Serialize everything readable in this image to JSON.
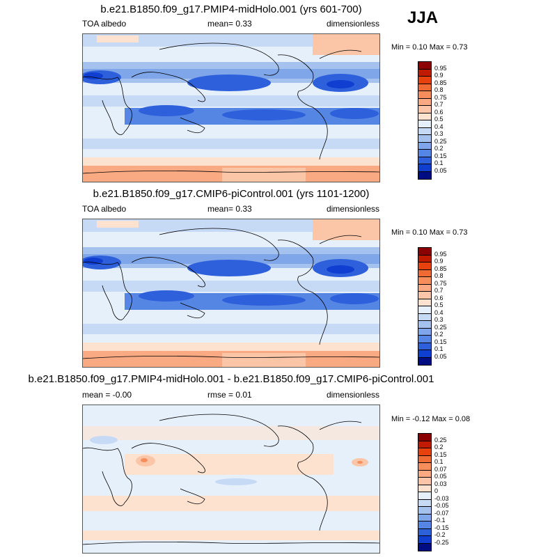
{
  "season": "JJA",
  "panels": [
    {
      "title": "b.e21.B1850.f09_g17.PMIP4-midHolo.001 (yrs 601-700)",
      "left_label": "TOA albedo",
      "center_label": "mean=   0.33",
      "right_label": "dimensionless",
      "minmax": "Min =   0.10 Max =   0.73",
      "kind": "abs"
    },
    {
      "title": "b.e21.B1850.f09_g17.CMIP6-piControl.001 (yrs 1101-1200)",
      "left_label": "TOA albedo",
      "center_label": "mean=   0.33",
      "right_label": "dimensionless",
      "minmax": "Min =   0.10 Max =   0.73",
      "kind": "abs"
    },
    {
      "title": "b.e21.B1850.f09_g17.PMIP4-midHolo.001 - b.e21.B1850.f09_g17.CMIP6-piControl.001",
      "left_label": "mean =  -0.00",
      "center_label": "rmse =   0.01",
      "right_label": "dimensionless",
      "minmax": "Min =  -0.12 Max =   0.08",
      "kind": "diff"
    }
  ],
  "colorbars": {
    "abs": {
      "labels": [
        "0.95",
        "0.9",
        "0.85",
        "0.8",
        "0.75",
        "0.7",
        "0.6",
        "0.5",
        "0.4",
        "0.3",
        "0.25",
        "0.2",
        "0.15",
        "0.1",
        "0.05"
      ],
      "colors": [
        "#8b0000",
        "#c11a00",
        "#e8400e",
        "#f06a35",
        "#f58e5c",
        "#f9aa82",
        "#fbc6a7",
        "#fde2d0",
        "#e6f0fb",
        "#c6d9f5",
        "#a5c2ee",
        "#7ea6e8",
        "#5686e4",
        "#2e60dc",
        "#0f3ed0",
        "#000d80"
      ]
    },
    "diff": {
      "labels": [
        "0.25",
        "0.2",
        "0.15",
        "0.1",
        "0.07",
        "0.05",
        "0.03",
        "0",
        "-0.03",
        "-0.05",
        "-0.07",
        "-0.1",
        "-0.15",
        "-0.2",
        "-0.25"
      ],
      "colors": [
        "#8b0000",
        "#c11a00",
        "#e8400e",
        "#f06a35",
        "#f58e5c",
        "#f9aa82",
        "#fbc6a7",
        "#fde2d0",
        "#e6f0fb",
        "#c6d9f5",
        "#a5c2ee",
        "#7ea6e8",
        "#5686e4",
        "#2e60dc",
        "#0f3ed0",
        "#000d80"
      ]
    }
  }
}
